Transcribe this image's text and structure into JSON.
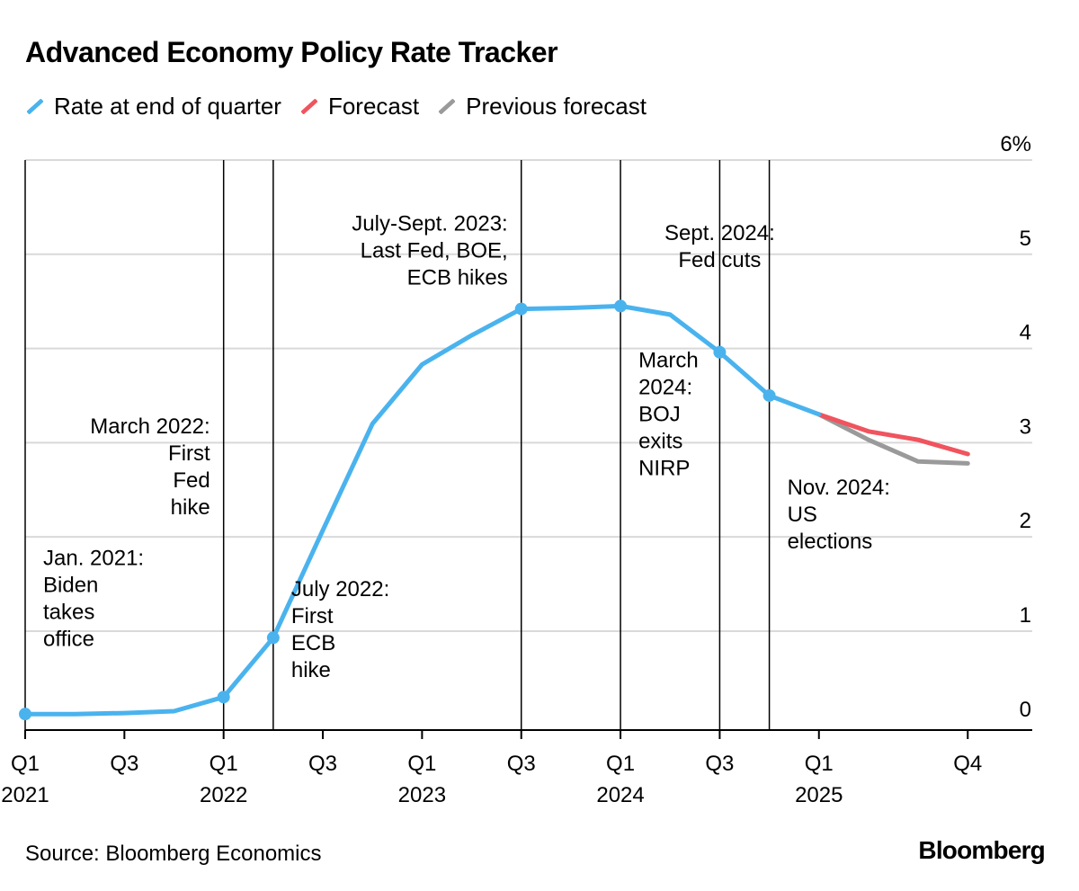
{
  "title": "Advanced Economy Policy Rate Tracker",
  "legend": [
    {
      "label": "Rate at end of quarter",
      "color": "#4ab3ee"
    },
    {
      "label": "Forecast",
      "color": "#f0545e"
    },
    {
      "label": "Previous forecast",
      "color": "#9a9a9a"
    }
  ],
  "source": "Source: Bloomberg Economics",
  "brand": "Bloomberg",
  "chart_data": {
    "type": "line",
    "title": "Advanced Economy Policy Rate Tracker",
    "x_ticks": [
      {
        "x": 0,
        "line1": "Q1",
        "line2": "2021"
      },
      {
        "x": 2,
        "line1": "Q3",
        "line2": ""
      },
      {
        "x": 4,
        "line1": "Q1",
        "line2": "2022"
      },
      {
        "x": 6,
        "line1": "Q3",
        "line2": ""
      },
      {
        "x": 8,
        "line1": "Q1",
        "line2": "2023"
      },
      {
        "x": 10,
        "line1": "Q3",
        "line2": ""
      },
      {
        "x": 12,
        "line1": "Q1",
        "line2": "2024"
      },
      {
        "x": 14,
        "line1": "Q3",
        "line2": ""
      },
      {
        "x": 16,
        "line1": "Q1",
        "line2": "2025"
      },
      {
        "x": 19,
        "line1": "Q4",
        "line2": ""
      }
    ],
    "xlim": [
      0,
      20.3
    ],
    "ylim": [
      -0.05,
      6.0
    ],
    "y_ticks": [
      {
        "value": 0,
        "label": "0"
      },
      {
        "value": 1,
        "label": "1"
      },
      {
        "value": 2,
        "label": "2"
      },
      {
        "value": 3,
        "label": "3"
      },
      {
        "value": 4,
        "label": "4"
      },
      {
        "value": 5,
        "label": "5"
      },
      {
        "value": 6,
        "label": "6%"
      }
    ],
    "gridlines": true,
    "series": [
      {
        "name": "Rate at end of quarter",
        "color": "#4ab3ee",
        "x": [
          0,
          1,
          2,
          3,
          4,
          5,
          6,
          7,
          8,
          9,
          10,
          11,
          12,
          13,
          14,
          15,
          16
        ],
        "y": [
          0.12,
          0.12,
          0.13,
          0.15,
          0.3,
          0.93,
          2.07,
          3.2,
          3.83,
          4.14,
          4.42,
          4.43,
          4.45,
          4.36,
          3.96,
          3.5,
          3.3
        ],
        "markers": [
          0,
          4,
          5,
          10,
          12,
          14,
          15
        ]
      },
      {
        "name": "Forecast",
        "color": "#f0545e",
        "x": [
          16,
          17,
          18,
          19
        ],
        "y": [
          3.3,
          3.12,
          3.03,
          2.88
        ]
      },
      {
        "name": "Previous forecast",
        "color": "#9a9a9a",
        "x": [
          16,
          17,
          18,
          19
        ],
        "y": [
          3.3,
          3.03,
          2.8,
          2.78
        ]
      }
    ],
    "events": [
      {
        "x": 0,
        "lines": [
          "Jan. 2021:",
          "Biden",
          "takes",
          "office"
        ],
        "align": "start",
        "side": "right",
        "y": 1.7
      },
      {
        "x": 4,
        "lines": [
          "March 2022:",
          "First",
          "Fed",
          "hike"
        ],
        "align": "end",
        "side": "left",
        "y": 3.1
      },
      {
        "x": 5,
        "lines": [
          "July 2022:",
          "First",
          "ECB",
          "hike"
        ],
        "align": "start",
        "side": "right",
        "y": 1.37
      },
      {
        "x": 10,
        "lines": [
          "July-Sept. 2023:",
          "Last Fed, BOE,",
          "ECB hikes"
        ],
        "align": "end",
        "side": "left",
        "y": 5.25
      },
      {
        "x": 12,
        "lines": [
          "March",
          "2024:",
          "BOJ",
          "exits",
          "NIRP"
        ],
        "align": "start",
        "side": "right",
        "y": 3.8
      },
      {
        "x": 14,
        "lines": [
          "Sept. 2024:",
          "Fed cuts"
        ],
        "align": "middle",
        "side": "center",
        "y": 5.15
      },
      {
        "x": 15,
        "lines": [
          "Nov. 2024:",
          "US",
          "elections"
        ],
        "align": "start",
        "side": "right",
        "y": 2.45
      }
    ]
  }
}
